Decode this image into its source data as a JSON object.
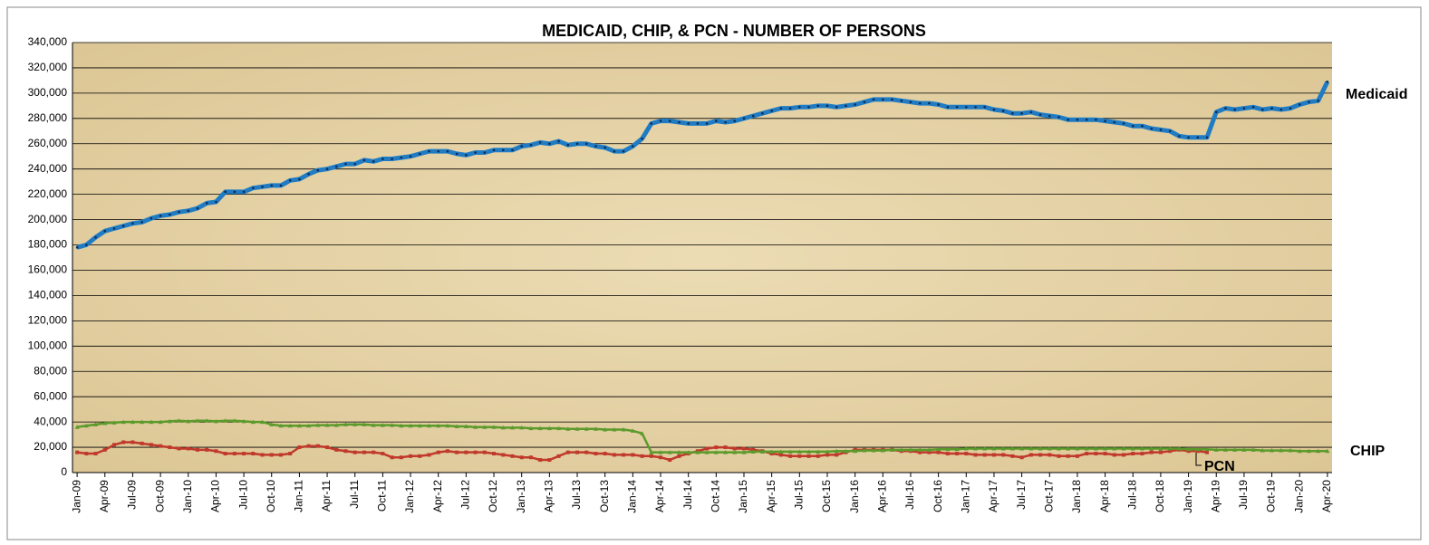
{
  "chart_data": {
    "type": "line",
    "title": "MEDICAID, CHIP, & PCN - NUMBER OF PERSONS",
    "categories": [
      "Jan-09",
      null,
      null,
      "Apr-09",
      null,
      null,
      "Jul-09",
      null,
      null,
      "Oct-09",
      null,
      null,
      "Jan-10",
      null,
      null,
      "Apr-10",
      null,
      null,
      "Jul-10",
      null,
      null,
      "Oct-10",
      null,
      null,
      "Jan-11",
      null,
      null,
      "Apr-11",
      null,
      null,
      "Jul-11",
      null,
      null,
      "Oct-11",
      null,
      null,
      "Jan-12",
      null,
      null,
      "Apr-12",
      null,
      null,
      "Jul-12",
      null,
      null,
      "Oct-12",
      null,
      null,
      "Jan-13",
      null,
      null,
      "Apr-13",
      null,
      null,
      "Jul-13",
      null,
      null,
      "Oct-13",
      null,
      null,
      "Jan-14",
      null,
      null,
      "Apr-14",
      null,
      null,
      "Jul-14",
      null,
      null,
      "Oct-14",
      null,
      null,
      "Jan-15",
      null,
      null,
      "Apr-15",
      null,
      null,
      "Jul-15",
      null,
      null,
      "Oct-15",
      null,
      null,
      "Jan-16",
      null,
      null,
      "Apr-16",
      null,
      null,
      "Jul-16",
      null,
      null,
      "Oct-16",
      null,
      null,
      "Jan-17",
      null,
      null,
      "Apr-17",
      null,
      null,
      "Jul-17",
      null,
      null,
      "Oct-17",
      null,
      null,
      "Jan-18",
      null,
      null,
      "Apr-18",
      null,
      null,
      "Jul-18",
      null,
      null,
      "Oct-18",
      null,
      null,
      "Jan-19",
      null,
      null,
      "Apr-19",
      null,
      null,
      "Jul-19",
      null,
      null,
      "Oct-19",
      null,
      null,
      "Jan-20",
      null,
      null,
      "Apr-20"
    ],
    "series": [
      {
        "name": "Medicaid",
        "color": "#1f7cc4",
        "marker": "circle",
        "values": [
          178000,
          180000,
          186000,
          191000,
          193000,
          195000,
          197000,
          198000,
          201000,
          203000,
          204000,
          206000,
          207000,
          209000,
          213000,
          214000,
          222000,
          222000,
          222000,
          225000,
          226000,
          227000,
          227000,
          231000,
          232000,
          236000,
          239000,
          240000,
          242000,
          244000,
          244000,
          247000,
          246000,
          248000,
          248000,
          249000,
          250000,
          252000,
          254000,
          254000,
          254000,
          252000,
          251000,
          253000,
          253000,
          255000,
          255000,
          255000,
          258000,
          259000,
          261000,
          260000,
          262000,
          259000,
          260000,
          260000,
          258000,
          257000,
          254000,
          254000,
          258000,
          264000,
          276000,
          278000,
          278000,
          277000,
          276000,
          276000,
          276000,
          278000,
          277000,
          278000,
          280000,
          282000,
          284000,
          286000,
          288000,
          288000,
          289000,
          289000,
          290000,
          290000,
          289000,
          290000,
          291000,
          293000,
          295000,
          295000,
          295000,
          294000,
          293000,
          292000,
          292000,
          291000,
          289000,
          289000,
          289000,
          289000,
          289000,
          287000,
          286000,
          284000,
          284000,
          285000,
          283000,
          282000,
          281000,
          279000,
          279000,
          279000,
          279000,
          278000,
          277000,
          276000,
          274000,
          274000,
          272000,
          271000,
          270000,
          266000,
          265000,
          265000,
          265000,
          285000,
          288000,
          287000,
          288000,
          289000,
          287000,
          288000,
          287000,
          288000,
          291000,
          293000,
          294000,
          309000
        ]
      },
      {
        "name": "CHIP",
        "color": "#5b9a2b",
        "marker": "triangle",
        "values": [
          36000,
          37000,
          38000,
          39000,
          39500,
          40000,
          40000,
          40000,
          40000,
          40000,
          40500,
          41000,
          40500,
          41000,
          41000,
          40500,
          41000,
          41000,
          40500,
          40000,
          40000,
          38000,
          37000,
          37000,
          37000,
          37000,
          37500,
          37500,
          37500,
          38000,
          38000,
          38000,
          37500,
          37500,
          37500,
          37000,
          37000,
          37000,
          37000,
          37000,
          37000,
          36500,
          36500,
          36000,
          36000,
          36000,
          35500,
          35500,
          35500,
          35000,
          35000,
          35000,
          35000,
          34500,
          34500,
          34500,
          34500,
          34000,
          34000,
          34000,
          33000,
          31000,
          16000,
          16000,
          16000,
          16000,
          16000,
          16000,
          16000,
          16000,
          16000,
          16000,
          16000,
          16500,
          16500,
          16500,
          16500,
          16500,
          16500,
          16500,
          16500,
          16500,
          17000,
          17000,
          17000,
          17500,
          17500,
          17500,
          18000,
          18000,
          18000,
          18000,
          18000,
          18500,
          18500,
          18500,
          19000,
          19000,
          19000,
          19000,
          19000,
          19000,
          19000,
          19000,
          19000,
          19000,
          19000,
          19000,
          19000,
          19000,
          19000,
          19000,
          19000,
          19000,
          19000,
          19000,
          19000,
          19000,
          19000,
          19000,
          18500,
          18500,
          18500,
          18000,
          18000,
          18000,
          18000,
          18000,
          17500,
          17500,
          17500,
          17500,
          17000,
          17000,
          17000,
          17000
        ]
      },
      {
        "name": "PCN",
        "color": "#c0392b",
        "marker": "square",
        "values": [
          16000,
          15000,
          15000,
          18000,
          22000,
          24000,
          24000,
          23000,
          22000,
          21000,
          20000,
          19000,
          19000,
          18000,
          18000,
          17000,
          15000,
          15000,
          15000,
          15000,
          14000,
          14000,
          14000,
          15000,
          20000,
          21000,
          21000,
          20000,
          18000,
          17000,
          16000,
          16000,
          16000,
          15000,
          12000,
          12000,
          13000,
          13000,
          14000,
          16000,
          17000,
          16000,
          16000,
          16000,
          16000,
          15000,
          14000,
          13000,
          12000,
          12000,
          10000,
          10000,
          13000,
          16000,
          16000,
          16000,
          15000,
          15000,
          14000,
          14000,
          14000,
          13000,
          13000,
          12000,
          10000,
          13000,
          15000,
          17000,
          19000,
          20000,
          20000,
          19000,
          19000,
          18000,
          17000,
          15000,
          14000,
          13000,
          13000,
          13000,
          13000,
          14000,
          14000,
          16000,
          18000,
          18000,
          18000,
          18000,
          18000,
          17000,
          17000,
          16000,
          16000,
          16000,
          15000,
          15000,
          15000,
          14000,
          14000,
          14000,
          14000,
          13000,
          12000,
          14000,
          14000,
          14000,
          13000,
          13000,
          13000,
          15000,
          15000,
          15000,
          14000,
          14000,
          15000,
          15000,
          16000,
          16000,
          17000,
          18000,
          17000,
          17000,
          16000,
          null,
          null,
          null,
          null,
          null,
          null,
          null,
          null,
          null,
          null,
          null,
          null,
          null
        ]
      }
    ],
    "ylim": [
      0,
      340000
    ],
    "yticks": [
      0,
      {
        "value": 20000,
        "label": "20,000"
      },
      {
        "value": 40000,
        "label": "40,000"
      },
      {
        "value": 60000,
        "label": "60,000"
      },
      {
        "value": 80000,
        "label": "80,000"
      },
      {
        "value": 100000,
        "label": "100,000"
      },
      {
        "value": 120000,
        "label": "120,000"
      },
      {
        "value": 140000,
        "label": "140,000"
      },
      {
        "value": 160000,
        "label": "160,000"
      },
      {
        "value": 180000,
        "label": "180,000"
      },
      {
        "value": 200000,
        "label": "200,000"
      },
      {
        "value": 220000,
        "label": "220,000"
      },
      {
        "value": 240000,
        "label": "240,000"
      },
      {
        "value": 260000,
        "label": "260,000"
      },
      {
        "value": 280000,
        "label": "280,000"
      },
      {
        "value": 300000,
        "label": "300,000"
      },
      {
        "value": 320000,
        "label": "320,000"
      },
      {
        "value": 340000,
        "label": "340,000"
      }
    ],
    "grid": true
  }
}
